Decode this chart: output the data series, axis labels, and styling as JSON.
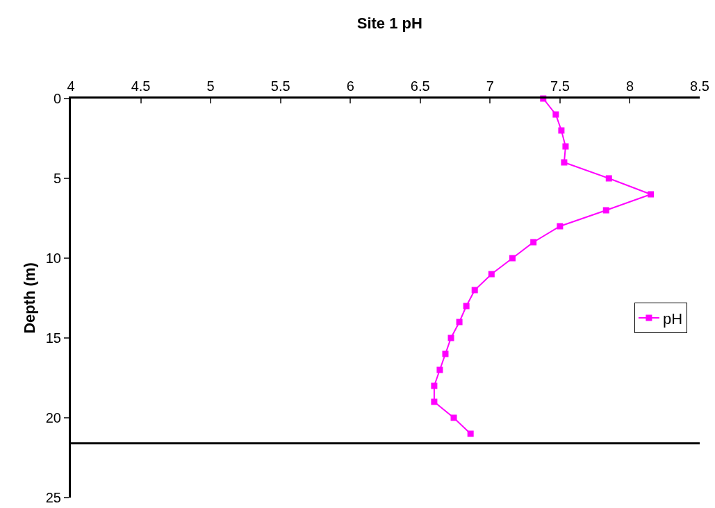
{
  "chart_data": {
    "type": "line",
    "title": "Site 1 pH",
    "ylabel": "Depth (m)",
    "xlim": [
      4,
      8.5
    ],
    "xticks": [
      4,
      4.5,
      5,
      5.5,
      6,
      6.5,
      7,
      7.5,
      8,
      8.5
    ],
    "ylim": [
      25,
      0
    ],
    "yticks": [
      0,
      5,
      10,
      15,
      20,
      25
    ],
    "grid": false,
    "legend": "right",
    "marker": "square",
    "line_style": "solid",
    "ref_lines": [
      {
        "axis": "y",
        "value": 21.6,
        "label": null,
        "color": "#000000"
      }
    ],
    "series": [
      {
        "name": "pH",
        "color": "#ff00ff",
        "x": [
          7.38,
          7.47,
          7.51,
          7.54,
          7.53,
          7.85,
          8.15,
          7.83,
          7.5,
          7.31,
          7.16,
          7.01,
          6.89,
          6.83,
          6.78,
          6.72,
          6.68,
          6.64,
          6.6,
          6.6,
          6.74,
          6.86
        ],
        "values": [
          0,
          1,
          2,
          3,
          4,
          5,
          6,
          7,
          8,
          9,
          10,
          11,
          12,
          13,
          14,
          15,
          16,
          17,
          18,
          19,
          20,
          21
        ]
      }
    ]
  }
}
